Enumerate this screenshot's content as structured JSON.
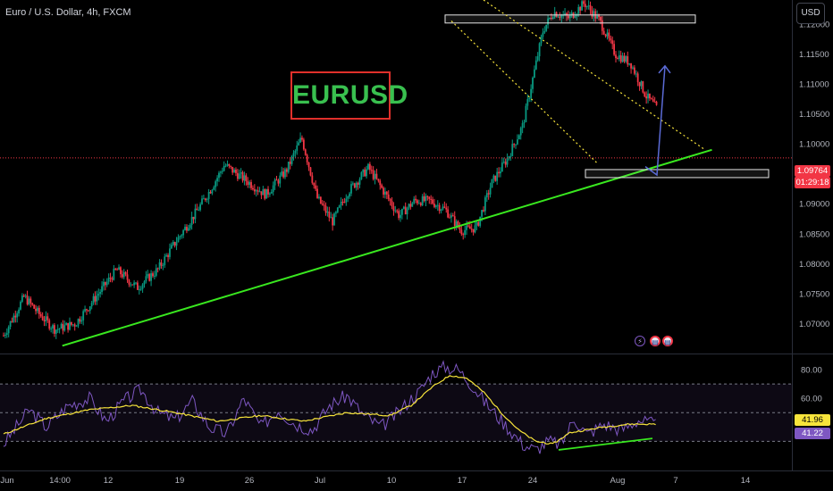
{
  "header": {
    "symbol_title": "Euro / U.S. Dollar, 4h, FXCM",
    "currency_button": "USD"
  },
  "annotation_label": "EURUSD",
  "price_tags": {
    "last_price": "1.09764",
    "countdown": "01:29:18",
    "rsi_ma_value": "41.96",
    "rsi_value": "41.22"
  },
  "colors": {
    "background": "#000000",
    "up_candle": "#089981",
    "down_candle": "#f23645",
    "trendline": "#39e81f",
    "channel": "#f7e43b",
    "zone": "#e6e6e6",
    "projection_arrow": "#5b6bd6",
    "rsi_line": "#7e57c2",
    "rsi_ma": "#f7e43b",
    "last_price_line": "#f23645"
  },
  "events": [
    {
      "icon": "lightning-icon",
      "color": "#7e57c2"
    },
    {
      "icon": "us-flag-icon",
      "color": "#f23645"
    },
    {
      "icon": "us-flag-icon",
      "color": "#f23645"
    }
  ],
  "chart_data": [
    {
      "type": "candlestick",
      "title": "Euro / U.S. Dollar, 4h, FXCM",
      "ylim": [
        1.065,
        1.124
      ],
      "y_ticks": [
        1.12,
        1.115,
        1.11,
        1.105,
        1.1,
        1.095,
        1.09,
        1.085,
        1.08,
        1.075,
        1.07
      ],
      "y_tick_labels": [
        "1.12000",
        "1.11500",
        "1.11000",
        "1.10500",
        "1.10000",
        "1.09500",
        "1.09000",
        "1.08500",
        "1.08000",
        "1.07500",
        "1.07000"
      ],
      "x_tick_labels": [
        "Jun",
        "14:00",
        "12",
        "19",
        "26",
        "Jul",
        "10",
        "17",
        "24",
        "Aug",
        "7",
        "14"
      ],
      "last_price": 1.09764,
      "price_path": [
        [
          0,
          1.068
        ],
        [
          4,
          1.0745
        ],
        [
          7,
          1.0715
        ],
        [
          10,
          1.069
        ],
        [
          14,
          1.07
        ],
        [
          18,
          1.0745
        ],
        [
          22,
          1.079
        ],
        [
          26,
          1.076
        ],
        [
          30,
          1.079
        ],
        [
          33,
          1.083
        ],
        [
          37,
          1.088
        ],
        [
          40,
          1.092
        ],
        [
          43,
          1.0965
        ],
        [
          47,
          1.094
        ],
        [
          51,
          1.0915
        ],
        [
          55,
          1.0955
        ],
        [
          58,
          1.101
        ],
        [
          61,
          1.091
        ],
        [
          64,
          1.087
        ],
        [
          67,
          1.092
        ],
        [
          71,
          1.096
        ],
        [
          74,
          1.092
        ],
        [
          77,
          1.088
        ],
        [
          80,
          1.0905
        ],
        [
          83,
          1.0905
        ],
        [
          86,
          1.089
        ],
        [
          89,
          1.0855
        ],
        [
          92,
          1.086
        ],
        [
          95,
          1.0935
        ],
        [
          98,
          1.0975
        ],
        [
          101,
          1.103
        ],
        [
          103,
          1.111
        ],
        [
          105,
          1.119
        ],
        [
          107,
          1.122
        ],
        [
          110,
          1.121
        ],
        [
          113,
          1.1235
        ],
        [
          116,
          1.1205
        ],
        [
          119,
          1.115
        ],
        [
          122,
          1.1135
        ],
        [
          125,
          1.108
        ],
        [
          128,
          1.105
        ],
        [
          131,
          1.112
        ],
        [
          133,
          1.114
        ],
        [
          135,
          1.099
        ],
        [
          137,
          1.0965
        ],
        [
          140,
          1.1035
        ],
        [
          143,
          1.099
        ],
        [
          146,
          1.0975
        ],
        [
          149,
          1.101
        ],
        [
          152,
          1.097
        ]
      ],
      "annotations": {
        "ascending_trendline": [
          [
            1,
            1.0663
          ],
          [
            150,
            1.099
          ]
        ],
        "resistance_zone": {
          "x": [
            79,
            122
          ],
          "y": [
            1.1205,
            1.1215
          ]
        },
        "support_zone": {
          "x": [
            116,
            152
          ],
          "y": [
            1.0947,
            1.0957
          ]
        },
        "descending_channel_upper": [
          [
            109,
            1.124
          ],
          [
            139,
            1.0992
          ]
        ],
        "descending_channel_lower": [
          [
            103,
            1.1205
          ],
          [
            115,
            1.0968
          ]
        ],
        "projection_arrow": {
          "from": [
            134,
            1.0948
          ],
          "via": [
            134,
            1.097
          ],
          "to": [
            135,
            1.113
          ]
        }
      }
    },
    {
      "type": "line",
      "title": "RSI",
      "ylim": [
        14,
        90
      ],
      "y_ticks": [
        80,
        60
      ],
      "y_tick_labels": [
        "80.00",
        "60.00"
      ],
      "bands": [
        70,
        50,
        30
      ],
      "series": [
        {
          "values": [
            [
              0,
              28
            ],
            [
              6,
              52
            ],
            [
              10,
              40
            ],
            [
              15,
              55
            ],
            [
              20,
              60
            ],
            [
              24,
              44
            ],
            [
              28,
              58
            ],
            [
              32,
              66
            ],
            [
              36,
              50
            ],
            [
              40,
              45
            ],
            [
              44,
              58
            ],
            [
              48,
              40
            ],
            [
              52,
              35
            ],
            [
              56,
              60
            ],
            [
              60,
              40
            ],
            [
              64,
              52
            ],
            [
              68,
              42
            ],
            [
              72,
              38
            ],
            [
              76,
              55
            ],
            [
              80,
              62
            ],
            [
              84,
              48
            ],
            [
              88,
              40
            ],
            [
              92,
              50
            ],
            [
              95,
              60
            ],
            [
              97,
              65
            ],
            [
              100,
              78
            ],
            [
              103,
              82
            ],
            [
              106,
              80
            ],
            [
              109,
              70
            ],
            [
              112,
              58
            ],
            [
              115,
              48
            ],
            [
              118,
              38
            ],
            [
              121,
              28
            ],
            [
              124,
              24
            ],
            [
              127,
              30
            ],
            [
              130,
              28
            ],
            [
              133,
              46
            ],
            [
              136,
              35
            ],
            [
              140,
              42
            ],
            [
              144,
              38
            ],
            [
              148,
              45
            ],
            [
              152,
              41.22
            ]
          ]
        },
        {
          "values": [
            [
              0,
              35
            ],
            [
              10,
              46
            ],
            [
              20,
              52
            ],
            [
              30,
              55
            ],
            [
              40,
              50
            ],
            [
              50,
              44
            ],
            [
              60,
              48
            ],
            [
              70,
              44
            ],
            [
              80,
              50
            ],
            [
              90,
              48
            ],
            [
              95,
              55
            ],
            [
              100,
              68
            ],
            [
              104,
              76
            ],
            [
              108,
              74
            ],
            [
              112,
              64
            ],
            [
              116,
              50
            ],
            [
              120,
              38
            ],
            [
              124,
              30
            ],
            [
              128,
              28
            ],
            [
              132,
              36
            ],
            [
              136,
              38
            ],
            [
              140,
              40
            ],
            [
              146,
              42
            ],
            [
              152,
              41.96
            ]
          ]
        }
      ],
      "annotations": {
        "divergence_line": [
          [
            118,
            24
          ],
          [
            152,
            32
          ]
        ]
      }
    }
  ]
}
